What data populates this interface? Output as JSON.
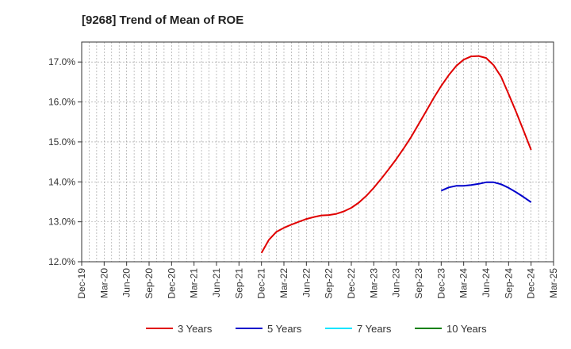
{
  "chart_data": {
    "type": "line",
    "title": "[9268]  Trend of Mean of ROE",
    "xlabel": "",
    "ylabel": "",
    "x": [
      "Dec-19",
      "Mar-20",
      "Jun-20",
      "Sep-20",
      "Dec-20",
      "Mar-21",
      "Jun-21",
      "Sep-21",
      "Dec-21",
      "Mar-22",
      "Jun-22",
      "Sep-22",
      "Dec-22",
      "Mar-23",
      "Jun-23",
      "Sep-23",
      "Dec-23",
      "Mar-24",
      "Jun-24",
      "Sep-24",
      "Dec-24",
      "Mar-25"
    ],
    "ylim": [
      12.0,
      17.5
    ],
    "yticks": [
      "12.0%",
      "13.0%",
      "14.0%",
      "15.0%",
      "16.0%",
      "17.0%"
    ],
    "grid": true,
    "legend_position": "bottom",
    "series": [
      {
        "name": "3 Years",
        "color": "#e00000",
        "points": [
          [
            "Dec-21",
            12.22
          ],
          [
            "Jan-22",
            12.55
          ],
          [
            "Feb-22",
            12.75
          ],
          [
            "Mar-22",
            12.85
          ],
          [
            "Apr-22",
            12.93
          ],
          [
            "May-22",
            13.0
          ],
          [
            "Jun-22",
            13.07
          ],
          [
            "Jul-22",
            13.12
          ],
          [
            "Aug-22",
            13.16
          ],
          [
            "Sep-22",
            13.17
          ],
          [
            "Oct-22",
            13.2
          ],
          [
            "Nov-22",
            13.26
          ],
          [
            "Dec-22",
            13.35
          ],
          [
            "Jan-23",
            13.48
          ],
          [
            "Feb-23",
            13.65
          ],
          [
            "Mar-23",
            13.85
          ],
          [
            "Apr-23",
            14.08
          ],
          [
            "May-23",
            14.32
          ],
          [
            "Jun-23",
            14.57
          ],
          [
            "Jul-23",
            14.84
          ],
          [
            "Aug-23",
            15.13
          ],
          [
            "Sep-23",
            15.45
          ],
          [
            "Oct-23",
            15.77
          ],
          [
            "Nov-23",
            16.1
          ],
          [
            "Dec-23",
            16.4
          ],
          [
            "Jan-24",
            16.67
          ],
          [
            "Feb-24",
            16.9
          ],
          [
            "Mar-24",
            17.06
          ],
          [
            "Apr-24",
            17.14
          ],
          [
            "May-24",
            17.15
          ],
          [
            "Jun-24",
            17.1
          ],
          [
            "Jul-24",
            16.92
          ],
          [
            "Aug-24",
            16.63
          ],
          [
            "Sep-24",
            16.2
          ],
          [
            "Oct-24",
            15.75
          ],
          [
            "Nov-24",
            15.28
          ],
          [
            "Dec-24",
            14.8
          ]
        ]
      },
      {
        "name": "5 Years",
        "color": "#0000cc",
        "points": [
          [
            "Dec-23",
            13.78
          ],
          [
            "Jan-24",
            13.86
          ],
          [
            "Feb-24",
            13.9
          ],
          [
            "Mar-24",
            13.9
          ],
          [
            "Apr-24",
            13.92
          ],
          [
            "May-24",
            13.95
          ],
          [
            "Jun-24",
            13.99
          ],
          [
            "Jul-24",
            13.99
          ],
          [
            "Aug-24",
            13.94
          ],
          [
            "Sep-24",
            13.85
          ],
          [
            "Oct-24",
            13.74
          ],
          [
            "Nov-24",
            13.62
          ],
          [
            "Dec-24",
            13.49
          ]
        ]
      },
      {
        "name": "7 Years",
        "color": "#00e5ff",
        "points": []
      },
      {
        "name": "10 Years",
        "color": "#008000",
        "points": []
      }
    ]
  }
}
